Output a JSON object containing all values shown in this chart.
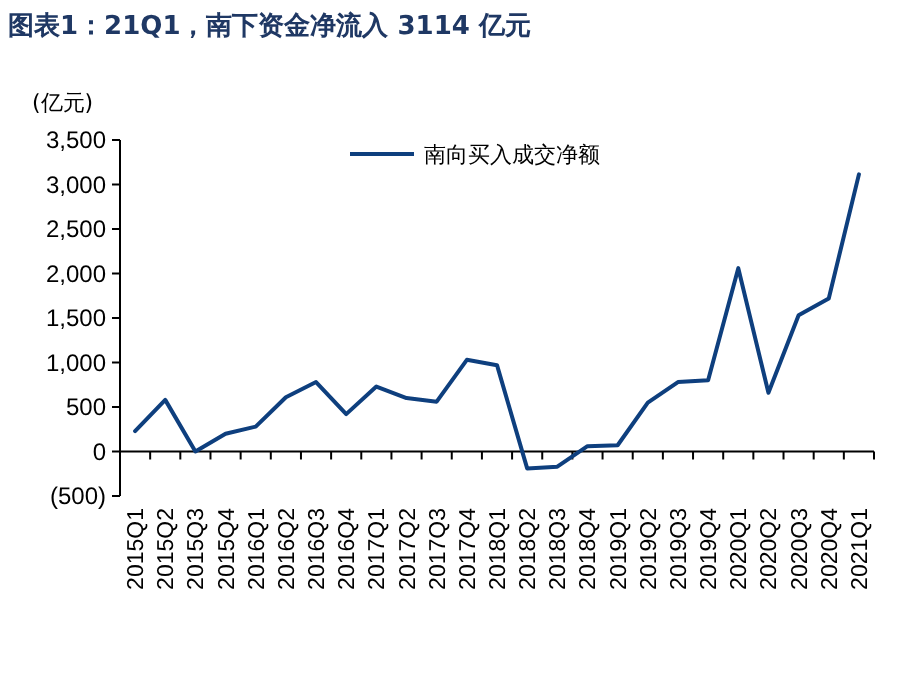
{
  "chart_data": {
    "type": "line",
    "title": "图表1：21Q1，南下资金净流入 3114 亿元",
    "ylabel": "(亿元)",
    "categories": [
      "2015Q1",
      "2015Q2",
      "2015Q3",
      "2015Q4",
      "2016Q1",
      "2016Q2",
      "2016Q3",
      "2016Q4",
      "2017Q1",
      "2017Q2",
      "2017Q3",
      "2017Q4",
      "2018Q1",
      "2018Q2",
      "2018Q3",
      "2018Q4",
      "2019Q1",
      "2019Q2",
      "2019Q3",
      "2019Q4",
      "2020Q1",
      "2020Q2",
      "2020Q3",
      "2020Q4",
      "2021Q1"
    ],
    "series": [
      {
        "name": "南向买入成交净额",
        "color": "#0e3f7e",
        "values": [
          230,
          580,
          0,
          200,
          280,
          610,
          780,
          420,
          730,
          600,
          560,
          1030,
          970,
          -190,
          -170,
          60,
          70,
          550,
          780,
          800,
          2060,
          660,
          1530,
          1720,
          3114
        ]
      }
    ],
    "ylim": [
      -500,
      3500
    ],
    "yticks": [
      {
        "value": -500,
        "label": "(500)"
      },
      0,
      {
        "value": 500,
        "label": "500"
      },
      {
        "value": 1000,
        "label": "1,000"
      },
      {
        "value": 1500,
        "label": "1,500"
      },
      {
        "value": 2000,
        "label": "2,000"
      },
      {
        "value": 2500,
        "label": "2,500"
      },
      {
        "value": 3000,
        "label": "3,000"
      },
      {
        "value": 3500,
        "label": "3,500"
      }
    ],
    "legend": "top"
  }
}
